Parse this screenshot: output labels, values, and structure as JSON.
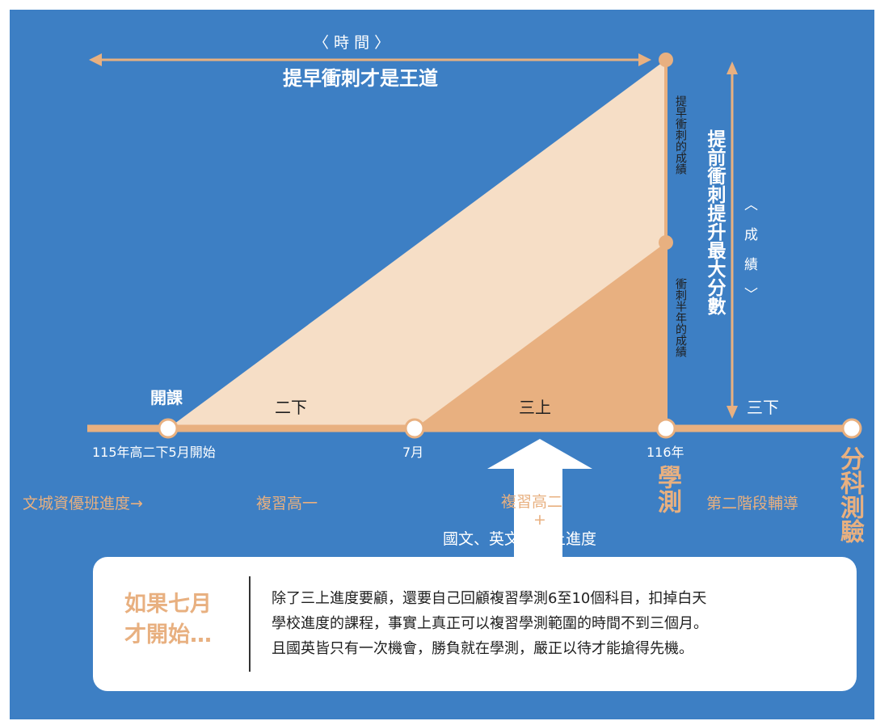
{
  "time_axis": {
    "label": "〈 時 間 〉",
    "caption": "提早衝刺才是王道"
  },
  "score_axis": {
    "label": "〈 成 績 〉",
    "caption": "提前衝刺提升最大分數"
  },
  "series": [
    {
      "vertical_label": "提早衝刺的成績"
    },
    {
      "vertical_label": "衝刺半年的成績"
    }
  ],
  "segments": {
    "first": "二下",
    "second": "三上",
    "third": "三下"
  },
  "start_label": "開課",
  "timeline_points": [
    {
      "label": "115年高二下5月開始"
    },
    {
      "label": "7月"
    },
    {
      "label": "116年"
    },
    {
      "label": ""
    }
  ],
  "exam_labels": {
    "gsat": "學測",
    "ast": "分科測驗"
  },
  "progress": {
    "row_title": "文城資優班進度→",
    "review_first": "複習高一",
    "review_second": "複習高二",
    "plus": "+",
    "subjects": "國文、英文高三上進度",
    "second_stage": "第二階段輔導"
  },
  "note": {
    "heading_line1": "如果七月",
    "heading_line2": "才開始…",
    "lines": [
      "除了三上進度要顧，還要自己回顧複習學測6至10個科目，扣掉白天",
      "學校進度的課程，事實上真正可以複習學測範圍的時間不到三個月。",
      "且國英皆只有一次機會，勝負就在學測，嚴正以待才能搶得先機。"
    ]
  },
  "colors": {
    "background": "#3d7fc4",
    "light_area": "#f6dec6",
    "dark_area": "#e8b080",
    "line": "#e8b080",
    "text_dark": "#1f1f1f"
  }
}
